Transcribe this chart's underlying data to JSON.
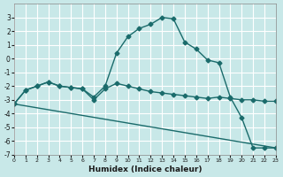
{
  "xlabel": "Humidex (Indice chaleur)",
  "ylabel": "",
  "bg_color": "#c8e8e8",
  "grid_color": "#ffffff",
  "line_color": "#1a6b6b",
  "xlim": [
    0,
    23
  ],
  "ylim": [
    -7,
    4
  ],
  "yticks": [
    3,
    2,
    1,
    0,
    -1,
    -2,
    -3,
    -4,
    -5,
    -6,
    -7
  ],
  "xticks": [
    0,
    1,
    2,
    3,
    4,
    5,
    6,
    7,
    8,
    9,
    10,
    11,
    12,
    13,
    14,
    15,
    16,
    17,
    18,
    19,
    20,
    21,
    22,
    23
  ],
  "line1_x": [
    0,
    1,
    2,
    3,
    4,
    5,
    6,
    7,
    8,
    9,
    10,
    11,
    12,
    13,
    14,
    15,
    16,
    17,
    18,
    19,
    20,
    21,
    22,
    23
  ],
  "line1_y": [
    -3.3,
    -2.3,
    -2.0,
    -1.7,
    -2.0,
    -2.1,
    -2.2,
    -2.8,
    -2.0,
    0.4,
    1.6,
    2.2,
    2.5,
    3.0,
    2.9,
    1.2,
    0.7,
    -0.1,
    -0.3,
    -2.8,
    -4.3,
    -6.5,
    -6.5,
    -6.5
  ],
  "line2_x": [
    0,
    1,
    2,
    3,
    4,
    5,
    6,
    7,
    8,
    9,
    10,
    11,
    12,
    13,
    14,
    15,
    16,
    17,
    18,
    19,
    20,
    21,
    22,
    23
  ],
  "line2_y": [
    -3.3,
    -2.3,
    -2.0,
    -1.7,
    -2.0,
    -2.1,
    -2.2,
    -3.0,
    -2.2,
    -1.8,
    -2.0,
    -2.2,
    -2.4,
    -2.5,
    -2.6,
    -2.7,
    -2.8,
    -2.9,
    -2.8,
    -2.9,
    -3.0,
    -3.0,
    -3.1,
    -3.1
  ],
  "line3_x": [
    0,
    23
  ],
  "line3_y": [
    -3.3,
    -6.5
  ]
}
